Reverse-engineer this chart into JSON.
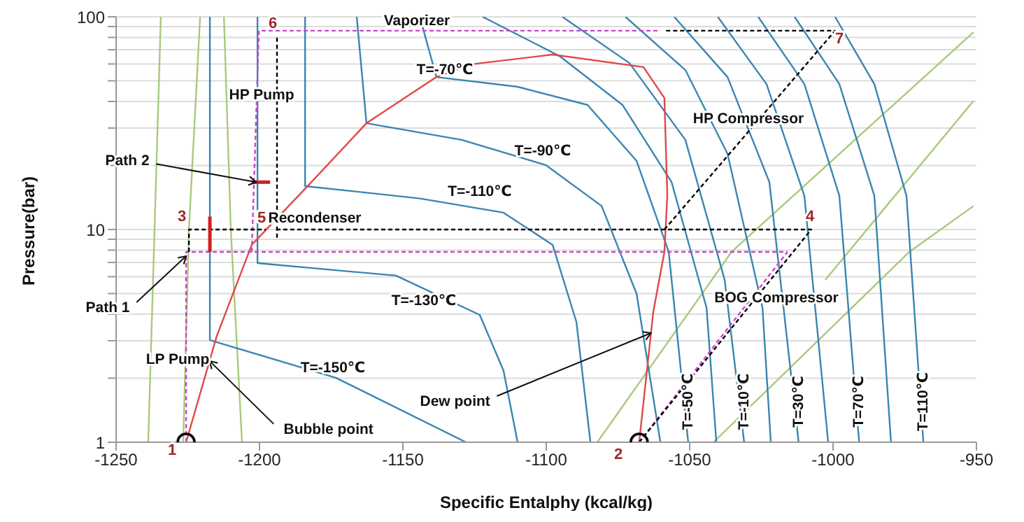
{
  "chart_data": {
    "type": "line",
    "xlabel": "Specific Entalphy (kcal/kg)",
    "ylabel": "Pressure(bar)",
    "xlim": [
      -1250,
      -950
    ],
    "xticks": [
      -1250,
      -1200,
      -1150,
      -1100,
      -1050,
      -1000,
      -950
    ],
    "ylim": [
      1,
      100
    ],
    "log": "y",
    "yticks": [
      1,
      {
        "value": 2,
        "label": null
      },
      {
        "value": 3,
        "label": null
      },
      {
        "value": 4,
        "label": null
      },
      {
        "value": 5,
        "label": null
      },
      {
        "value": 6,
        "label": null
      },
      {
        "value": 7,
        "label": null
      },
      {
        "value": 8,
        "label": null
      },
      {
        "value": 9,
        "label": null
      },
      10,
      {
        "value": 20,
        "label": null
      },
      {
        "value": 30,
        "label": null
      },
      {
        "value": 40,
        "label": null
      },
      {
        "value": 50,
        "label": null
      },
      {
        "value": 60,
        "label": null
      },
      {
        "value": 70,
        "label": null
      },
      {
        "value": 80,
        "label": null
      },
      {
        "value": 90,
        "label": null
      },
      100
    ],
    "grid": "y",
    "line_style": "solid",
    "series": [
      {
        "color": "#a9c97c",
        "x": [
          -1234.4,
          -1238.8
        ],
        "values": [
          100,
          1
        ]
      },
      {
        "color": "#a9c97c",
        "x": [
          -1220.7,
          -1224.6,
          -1226.6
        ],
        "values": [
          100,
          10,
          1
        ]
      },
      {
        "color": "#a9c97c",
        "x": [
          -1212.4,
          -1210,
          -1206.1
        ],
        "values": [
          100,
          10,
          1
        ]
      },
      {
        "color": "#a9c97c",
        "x": [
          -1082.2,
          -1035.4,
          -951
        ],
        "values": [
          1,
          7.85,
          84.7
        ]
      },
      {
        "color": "#a9c97c",
        "x": [
          -1002.7,
          -951
        ],
        "values": [
          5.8,
          40.3
        ]
      },
      {
        "color": "#a9c97c",
        "x": [
          -1041.7,
          -973.4,
          -951
        ],
        "values": [
          1,
          7.85,
          12.9
        ]
      },
      {
        "color": "#3a86b0",
        "x": [
          -1217.3,
          -1217.3,
          -1173.4,
          -1128
        ],
        "values": [
          100,
          3.02,
          2.01,
          1
        ]
      },
      {
        "color": "#3a86b0",
        "x": [
          -1200.7,
          -1200.7,
          -1152.4,
          -1123.2,
          -1114.9,
          -1110
        ],
        "values": [
          100,
          6.95,
          6.07,
          3.97,
          2.17,
          1
        ]
      },
      {
        "color": "#3a86b0",
        "x": [
          -1184.1,
          -1184.1,
          -1144.1,
          -1114.9,
          -1097.8,
          -1089.5,
          -1084.6
        ],
        "values": [
          100,
          16,
          14,
          12,
          8.47,
          3.68,
          1
        ]
      },
      {
        "color": "#3a86b0",
        "x": [
          -1166.1,
          -1162.7,
          -1129.5,
          -1100.2,
          -1080.7,
          -1068.5,
          -1060.2
        ],
        "values": [
          100,
          31.6,
          26.4,
          20.1,
          12.9,
          4.98,
          1
        ]
      },
      {
        "color": "#3a86b0",
        "x": [
          -1144.1,
          -1138.3,
          -1110,
          -1085.6,
          -1068.5,
          -1057.3,
          -1050.5
        ],
        "values": [
          100,
          52.1,
          46.9,
          38.5,
          21,
          7.85,
          1
        ]
      },
      {
        "color": "#3a86b0",
        "x": [
          -1122.2,
          -1095.4,
          -1073.4,
          -1056.3,
          -1044.1,
          -1040.7
        ],
        "values": [
          100,
          65.4,
          38.5,
          16.7,
          4.28,
          1
        ]
      },
      {
        "color": "#3a86b0",
        "x": [
          -1094.4,
          -1071,
          -1051.5,
          -1037.8,
          -1031
        ],
        "values": [
          100,
          60.6,
          26.4,
          5.8,
          1
        ]
      },
      {
        "color": "#3a86b0",
        "x": [
          -1072.4,
          -1051.5,
          -1036.8,
          -1024.6,
          -1021.7
        ],
        "values": [
          100,
          56.2,
          22.7,
          4.28,
          1
        ]
      },
      {
        "color": "#3a86b0",
        "x": [
          -1055.4,
          -1036.8,
          -1022.2,
          -1012
        ],
        "values": [
          100,
          52.1,
          16.7,
          1
        ]
      },
      {
        "color": "#3a86b0",
        "x": [
          -1040.2,
          -1023.2,
          -1010,
          -1001.7
        ],
        "values": [
          100,
          48.3,
          14.4,
          1
        ]
      },
      {
        "color": "#3a86b0",
        "x": [
          -1026.1,
          -1010,
          -997.8,
          -990.9
        ],
        "values": [
          100,
          48.3,
          14.4,
          1
        ]
      },
      {
        "color": "#3a86b0",
        "x": [
          -1013.4,
          -997.8,
          -985.6,
          -979.8
        ],
        "values": [
          100,
          48.3,
          14.4,
          1
        ]
      },
      {
        "color": "#3a86b0",
        "x": [
          -999.3,
          -985.6,
          -974.4,
          -968.5
        ],
        "values": [
          100,
          48.3,
          14.4,
          1
        ]
      },
      {
        "color": "#e04848",
        "x": [
          -1225.6,
          -1214.9,
          -1202.7,
          -1183.2,
          -1162.7,
          -1138.3,
          -1126.1,
          -1097.8,
          -1066.1,
          -1058.8,
          -1057.8,
          -1058.8,
          -1062.7,
          -1067.6
        ],
        "values": [
          1,
          3.16,
          8.47,
          16,
          31.6,
          52.1,
          59.8,
          66.4,
          58,
          41.5,
          14.4,
          7.85,
          4.09,
          1
        ]
      },
      {
        "color": "#cc44cc",
        "line_style": "dashed",
        "x": [
          -1225.6,
          -1225.6,
          -1015.9
        ],
        "values": [
          1,
          7.85,
          7.85
        ]
      },
      {
        "color": "#cc44cc",
        "line_style": "dashed",
        "x": [
          -1202.7,
          -1200.2,
          -1061.2
        ],
        "values": [
          7.85,
          86,
          86
        ]
      },
      {
        "color": "#cc44cc",
        "line_style": "dashed",
        "x": [
          -1067.6,
          -1015.9
        ],
        "values": [
          1,
          7.85
        ]
      },
      {
        "color": "#000000",
        "line_style": "dashed",
        "x": [
          -1224.6,
          -1224.6,
          -1197.8
        ],
        "values": [
          7.85,
          10,
          10
        ]
      },
      {
        "color": "#000000",
        "line_style": "dashed",
        "x": [
          -1067.6,
          -1007.6,
          -1194
        ],
        "values": [
          1,
          10,
          10
        ]
      },
      {
        "color": "#000000",
        "line_style": "dashed",
        "x": [
          -1193.9,
          -1193.9
        ],
        "values": [
          9.14,
          81
        ]
      },
      {
        "color": "#000000",
        "line_style": "dashed",
        "x": [
          -1058.8,
          -999.3,
          -1058.8
        ],
        "values": [
          10,
          86,
          86
        ]
      },
      {
        "color": "#d02020",
        "x": [
          -1217.3,
          -1217.3
        ],
        "values": [
          11.5,
          7.85
        ]
      },
      {
        "color": "#d02020",
        "x": [
          -1202.7,
          -1196.3
        ],
        "values": [
          16.7,
          16.7
        ]
      },
      {
        "type": "scatter",
        "marker": "circle",
        "color": "#000000",
        "x": [
          -1225.6,
          -1067.6
        ],
        "values": [
          1,
          1
        ]
      }
    ],
    "annotations": [
      "Vaporizer",
      "HP Pump",
      "HP Compressor",
      {
        "text": "Path 2",
        "x": -1201.2,
        "y": 16.7
      },
      {
        "text": "Path 1",
        "x": -1225.6,
        "y": 7.5
      },
      "Recondenser",
      "LP Pump",
      {
        "text": "Bubble point",
        "x": -1217.4,
        "y": 2.41
      },
      {
        "text": "Dew point",
        "x": -1063.5,
        "y": 3.26
      },
      "BOG Compressor",
      "T=-70℃",
      "T=-90℃",
      "T=-110℃",
      "T=-130℃",
      "T=-150℃",
      "T=-50℃",
      "T=-10℃",
      "T=30℃",
      "T=70℃",
      "T=110℃",
      "1",
      "2",
      "3",
      "4",
      "5",
      "6",
      "7"
    ]
  }
}
